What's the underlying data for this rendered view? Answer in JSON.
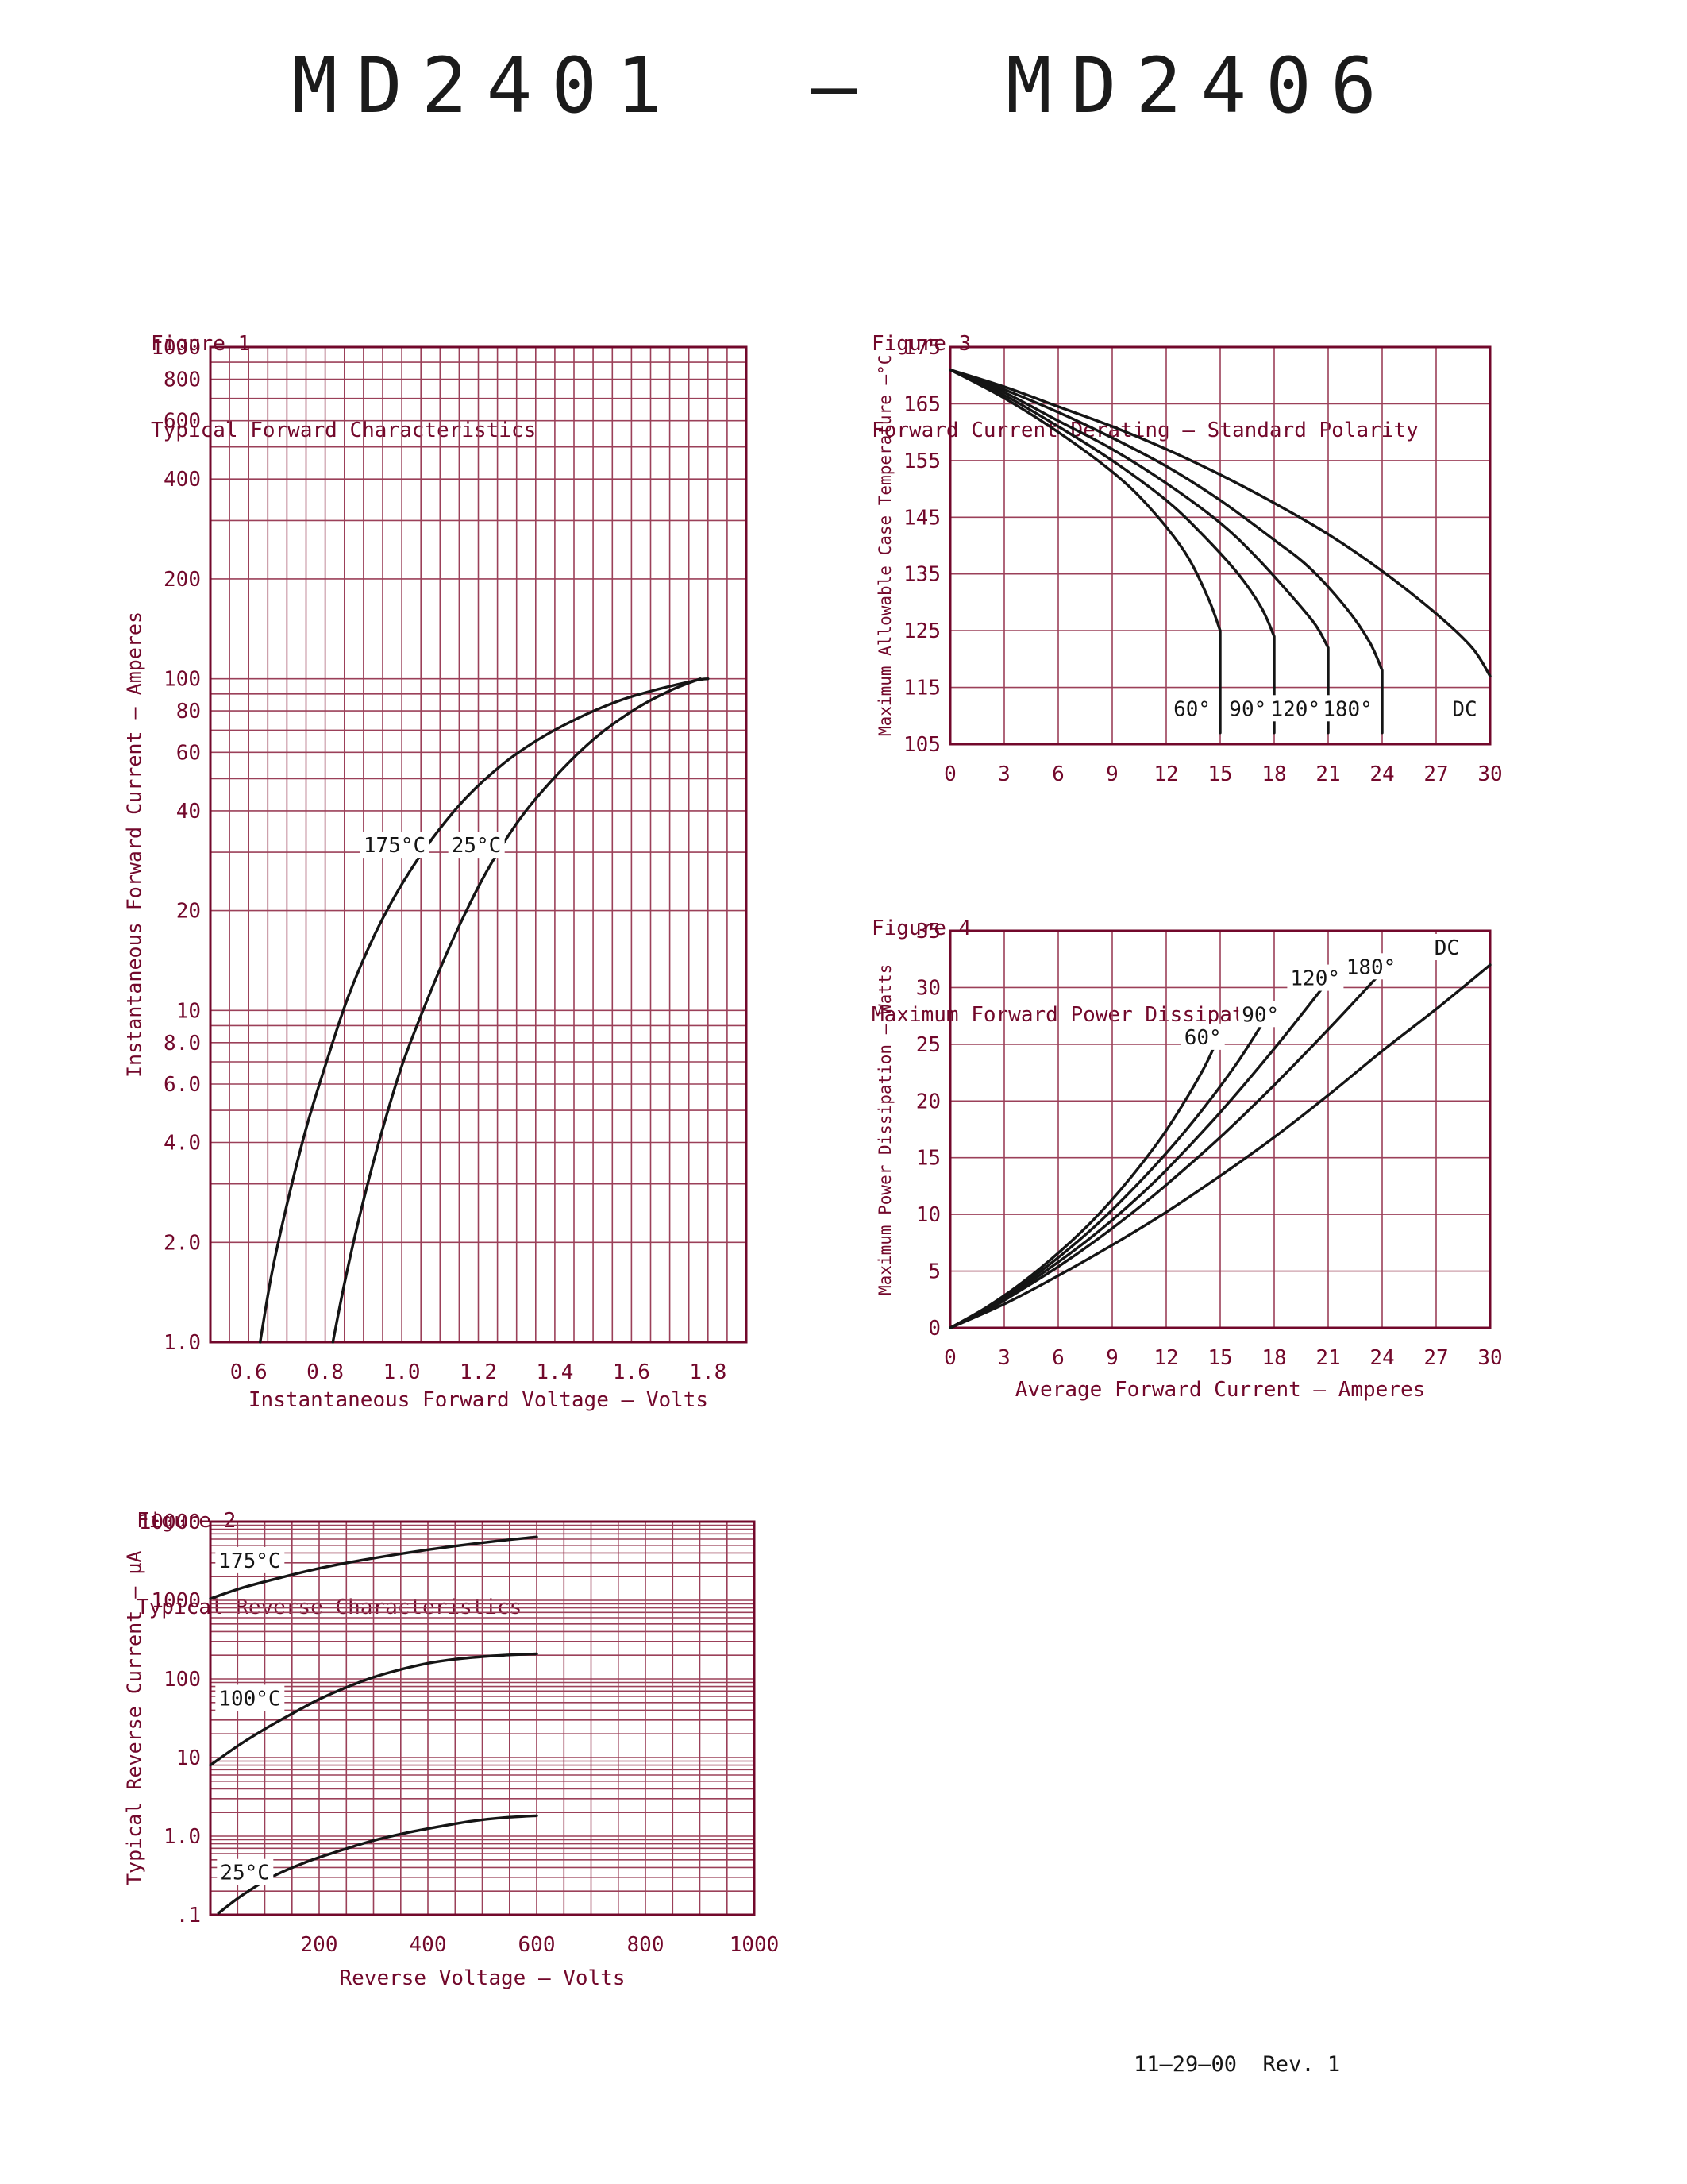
{
  "page": {
    "title": "MD2401  —  MD2406",
    "footer": "11–29–00  Rev. 1"
  },
  "colors": {
    "accent": "#72082b",
    "grid": "#9b4059",
    "curve": "#151515"
  },
  "chart_data": [
    {
      "id": "figure1",
      "type": "line",
      "figure_label": "Figure 1",
      "title": "Typical Forward Characteristics",
      "xlabel": "Instantaneous Forward Voltage — Volts",
      "ylabel": "Instantaneous Forward Current — Amperes",
      "xscale": "linear",
      "yscale": "log",
      "xlim": [
        0.5,
        1.9
      ],
      "ylim": [
        1,
        1000
      ],
      "x_minor_step": 0.05,
      "xticks": {
        "values": [
          0.6,
          0.8,
          1.0,
          1.2,
          1.4,
          1.6,
          1.8
        ],
        "labels": [
          "0.6",
          "0.8",
          "1.0",
          "1.2",
          "1.4",
          "1.6",
          "1.8"
        ]
      },
      "yticks": {
        "values": [
          1000,
          800,
          600,
          400,
          200,
          100,
          80,
          60,
          40,
          20,
          10,
          8,
          6,
          4,
          2,
          1
        ],
        "labels": [
          "1000",
          "800",
          "600",
          "400",
          "200",
          "100",
          "80",
          "60",
          "40",
          "20",
          "10",
          "8.0",
          "6.0",
          "4.0",
          "2.0",
          "1.0"
        ]
      },
      "grid": true,
      "legend": "none",
      "series": [
        {
          "name": "175°C",
          "points": [
            [
              0.63,
              1.0
            ],
            [
              0.66,
              1.6
            ],
            [
              0.7,
              2.6
            ],
            [
              0.75,
              4.4
            ],
            [
              0.8,
              6.8
            ],
            [
              0.86,
              11
            ],
            [
              0.93,
              17
            ],
            [
              1.0,
              24
            ],
            [
              1.08,
              33
            ],
            [
              1.17,
              44
            ],
            [
              1.27,
              56
            ],
            [
              1.37,
              67
            ],
            [
              1.47,
              77
            ],
            [
              1.57,
              86
            ],
            [
              1.67,
              93
            ],
            [
              1.77,
              99
            ],
            [
              1.8,
              100
            ]
          ]
        },
        {
          "name": "25°C",
          "points": [
            [
              0.82,
              1.0
            ],
            [
              0.85,
              1.5
            ],
            [
              0.89,
              2.4
            ],
            [
              0.94,
              4.0
            ],
            [
              1.0,
              6.8
            ],
            [
              1.07,
              11
            ],
            [
              1.14,
              17
            ],
            [
              1.22,
              26
            ],
            [
              1.31,
              38
            ],
            [
              1.41,
              52
            ],
            [
              1.51,
              67
            ],
            [
              1.61,
              81
            ],
            [
              1.7,
              92
            ],
            [
              1.78,
              100
            ]
          ]
        }
      ],
      "annotations": [
        {
          "text": "175°C",
          "x": 0.9,
          "y": 30
        },
        {
          "text": "25°C",
          "x": 1.13,
          "y": 30
        }
      ]
    },
    {
      "id": "figure3",
      "type": "line",
      "figure_label": "Figure 3",
      "title": "Forward Current Derating — Standard Polarity",
      "xlabel": "",
      "ylabel": "Maximum Allowable Case Temperature —°C",
      "xscale": "linear",
      "yscale": "linear",
      "xlim": [
        0,
        30
      ],
      "ylim": [
        105,
        175
      ],
      "xticks": {
        "values": [
          0,
          3,
          6,
          9,
          12,
          15,
          18,
          21,
          24,
          27,
          30
        ],
        "labels": [
          "0",
          "3",
          "6",
          "9",
          "12",
          "15",
          "18",
          "21",
          "24",
          "27",
          "30"
        ]
      },
      "yticks": {
        "values": [
          175,
          165,
          155,
          145,
          135,
          125,
          115,
          105
        ],
        "labels": [
          "175",
          "165",
          "155",
          "145",
          "135",
          "125",
          "115",
          "105"
        ]
      },
      "grid": true,
      "legend": "none",
      "series": [
        {
          "name": "60°",
          "drop_to": 107,
          "points": [
            [
              0,
              171
            ],
            [
              3,
              166
            ],
            [
              6,
              160
            ],
            [
              9,
              153
            ],
            [
              11,
              147
            ],
            [
              13,
              139
            ],
            [
              14.3,
              131
            ],
            [
              15,
              125
            ]
          ]
        },
        {
          "name": "90°",
          "drop_to": 107,
          "points": [
            [
              0,
              171
            ],
            [
              3,
              166.5
            ],
            [
              6,
              161
            ],
            [
              9,
              155
            ],
            [
              12,
              148
            ],
            [
              14,
              142
            ],
            [
              16,
              135
            ],
            [
              17.3,
              129
            ],
            [
              18,
              124
            ]
          ]
        },
        {
          "name": "120°",
          "drop_to": 107,
          "points": [
            [
              0,
              171
            ],
            [
              3,
              167
            ],
            [
              6,
              162
            ],
            [
              9,
              157
            ],
            [
              12,
              151
            ],
            [
              15,
              144
            ],
            [
              17,
              138
            ],
            [
              19,
              131
            ],
            [
              20.3,
              126
            ],
            [
              21,
              122
            ]
          ]
        },
        {
          "name": "180°",
          "drop_to": 107,
          "points": [
            [
              0,
              171
            ],
            [
              3,
              167.5
            ],
            [
              6,
              163.5
            ],
            [
              9,
              159
            ],
            [
              12,
              154
            ],
            [
              15,
              148
            ],
            [
              18,
              141
            ],
            [
              20,
              136
            ],
            [
              22,
              129
            ],
            [
              23.3,
              123
            ],
            [
              24,
              118
            ]
          ]
        },
        {
          "name": "DC",
          "points": [
            [
              0,
              171
            ],
            [
              3,
              168
            ],
            [
              6,
              164.5
            ],
            [
              9,
              161
            ],
            [
              12,
              157
            ],
            [
              15,
              152.5
            ],
            [
              18,
              147.5
            ],
            [
              21,
              142
            ],
            [
              24,
              135.5
            ],
            [
              27,
              128
            ],
            [
              29,
              122
            ],
            [
              30,
              117
            ]
          ]
        }
      ],
      "annotations": [
        {
          "text": "60°",
          "x": 12.4,
          "y": 110
        },
        {
          "text": "90°",
          "x": 15.5,
          "y": 110
        },
        {
          "text": "120°",
          "x": 17.8,
          "y": 110
        },
        {
          "text": "180°",
          "x": 20.7,
          "y": 110
        },
        {
          "text": "DC",
          "x": 27.9,
          "y": 110
        }
      ]
    },
    {
      "id": "figure4",
      "type": "line",
      "figure_label": "Figure 4",
      "title": "Maximum Forward Power Dissipation",
      "xlabel": "Average Forward Current — Amperes",
      "ylabel": "Maximum Power Dissipation — Watts",
      "xscale": "linear",
      "yscale": "linear",
      "xlim": [
        0,
        30
      ],
      "ylim": [
        0,
        35
      ],
      "xticks": {
        "values": [
          0,
          3,
          6,
          9,
          12,
          15,
          18,
          21,
          24,
          27,
          30
        ],
        "labels": [
          "0",
          "3",
          "6",
          "9",
          "12",
          "15",
          "18",
          "21",
          "24",
          "27",
          "30"
        ]
      },
      "yticks": {
        "values": [
          35,
          30,
          25,
          20,
          15,
          10,
          5,
          0
        ],
        "labels": [
          "35",
          "30",
          "25",
          "20",
          "15",
          "10",
          "5",
          "0"
        ]
      },
      "grid": true,
      "legend": "none",
      "series": [
        {
          "name": "60°",
          "points": [
            [
              0,
              0
            ],
            [
              2,
              1.8
            ],
            [
              4,
              4.0
            ],
            [
              6,
              6.6
            ],
            [
              8,
              9.6
            ],
            [
              10,
              13.2
            ],
            [
              12,
              17.4
            ],
            [
              14,
              22.6
            ],
            [
              15,
              26
            ]
          ]
        },
        {
          "name": "90°",
          "points": [
            [
              0,
              0
            ],
            [
              2,
              1.7
            ],
            [
              4,
              3.8
            ],
            [
              6,
              6.2
            ],
            [
              8,
              8.9
            ],
            [
              10,
              12.0
            ],
            [
              12,
              15.4
            ],
            [
              14,
              19.2
            ],
            [
              16,
              23.5
            ],
            [
              18,
              28.5
            ]
          ]
        },
        {
          "name": "120°",
          "points": [
            [
              0,
              0
            ],
            [
              2,
              1.6
            ],
            [
              4,
              3.6
            ],
            [
              6,
              5.8
            ],
            [
              8,
              8.2
            ],
            [
              10,
              10.9
            ],
            [
              12,
              13.9
            ],
            [
              15,
              19.0
            ],
            [
              18,
              24.6
            ],
            [
              21,
              30.6
            ]
          ]
        },
        {
          "name": "180°",
          "points": [
            [
              0,
              0
            ],
            [
              2,
              1.5
            ],
            [
              4,
              3.4
            ],
            [
              6,
              5.4
            ],
            [
              8,
              7.6
            ],
            [
              10,
              10.0
            ],
            [
              12,
              12.6
            ],
            [
              15,
              16.8
            ],
            [
              18,
              21.4
            ],
            [
              21,
              26.3
            ],
            [
              24,
              31.4
            ]
          ]
        },
        {
          "name": "DC",
          "points": [
            [
              0,
              0
            ],
            [
              3,
              2.1
            ],
            [
              6,
              4.6
            ],
            [
              9,
              7.3
            ],
            [
              12,
              10.2
            ],
            [
              15,
              13.4
            ],
            [
              18,
              16.8
            ],
            [
              21,
              20.5
            ],
            [
              24,
              24.4
            ],
            [
              27,
              28.1
            ],
            [
              30,
              32
            ]
          ]
        }
      ],
      "annotations": [
        {
          "text": "60°",
          "x": 13.0,
          "y": 25.0
        },
        {
          "text": "90°",
          "x": 16.2,
          "y": 27.0
        },
        {
          "text": "120°",
          "x": 18.9,
          "y": 30.2
        },
        {
          "text": "180°",
          "x": 22.0,
          "y": 31.2
        },
        {
          "text": "DC",
          "x": 26.9,
          "y": 32.9
        }
      ]
    },
    {
      "id": "figure2",
      "type": "line",
      "figure_label": "Figure 2",
      "title": "Typical Reverse Characteristics",
      "xlabel": "Reverse Voltage — Volts",
      "ylabel": "Typical Reverse Current — μA",
      "xscale": "linear",
      "yscale": "log",
      "xlim": [
        0,
        1000
      ],
      "ylim": [
        0.1,
        10000
      ],
      "x_minor_step": 50,
      "xticks": {
        "values": [
          200,
          400,
          600,
          800,
          1000
        ],
        "labels": [
          "200",
          "400",
          "600",
          "800",
          "1000"
        ]
      },
      "yticks": {
        "values": [
          10000,
          1000,
          100,
          10,
          1,
          0.1
        ],
        "labels": [
          "10000",
          "1000",
          "100",
          "10",
          "1.0",
          ".1"
        ]
      },
      "grid": true,
      "legend": "none",
      "series": [
        {
          "name": "175°C",
          "points": [
            [
              0,
              1050
            ],
            [
              60,
              1450
            ],
            [
              130,
              1950
            ],
            [
              200,
              2550
            ],
            [
              280,
              3250
            ],
            [
              360,
              4000
            ],
            [
              440,
              4800
            ],
            [
              520,
              5600
            ],
            [
              600,
              6400
            ]
          ]
        },
        {
          "name": "100°C",
          "points": [
            [
              0,
              8
            ],
            [
              50,
              14
            ],
            [
              100,
              23
            ],
            [
              150,
              36
            ],
            [
              200,
              55
            ],
            [
              250,
              78
            ],
            [
              300,
              105
            ],
            [
              350,
              132
            ],
            [
              400,
              158
            ],
            [
              450,
              178
            ],
            [
              500,
              192
            ],
            [
              550,
              202
            ],
            [
              600,
              208
            ]
          ]
        },
        {
          "name": "25°C",
          "points": [
            [
              15,
              0.105
            ],
            [
              60,
              0.18
            ],
            [
              120,
              0.32
            ],
            [
              180,
              0.48
            ],
            [
              240,
              0.66
            ],
            [
              300,
              0.88
            ],
            [
              360,
              1.1
            ],
            [
              420,
              1.32
            ],
            [
              480,
              1.55
            ],
            [
              540,
              1.72
            ],
            [
              600,
              1.82
            ]
          ]
        }
      ],
      "annotations": [
        {
          "text": "175°C",
          "x": 15,
          "y": 2600
        },
        {
          "text": "100°C",
          "x": 15,
          "y": 46
        },
        {
          "text": "25°C",
          "x": 18,
          "y": 0.28
        }
      ]
    }
  ]
}
